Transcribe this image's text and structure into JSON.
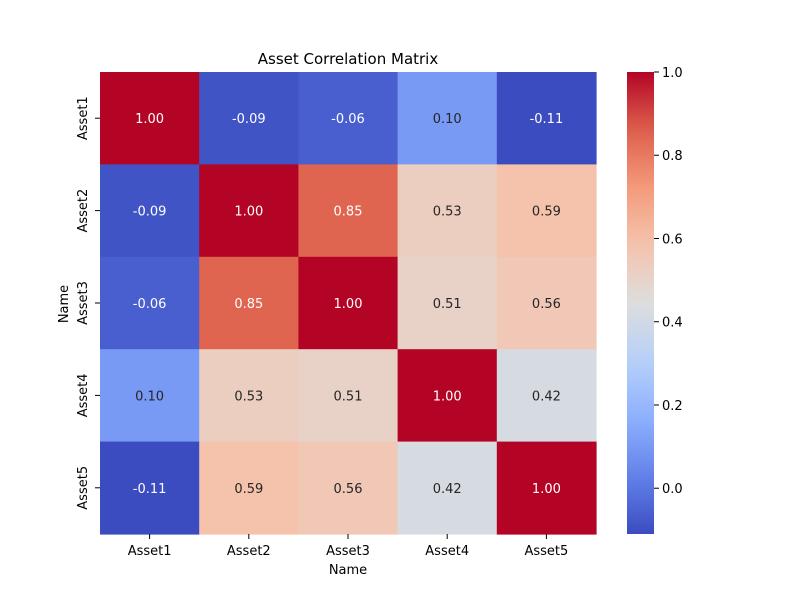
{
  "chart_data": {
    "type": "heatmap",
    "title": "Asset Correlation Matrix",
    "xlabel": "Name",
    "ylabel": "Name",
    "x_categories": [
      "Asset1",
      "Asset2",
      "Asset3",
      "Asset4",
      "Asset5"
    ],
    "y_categories": [
      "Asset1",
      "Asset2",
      "Asset3",
      "Asset4",
      "Asset5"
    ],
    "values": [
      [
        1.0,
        -0.09,
        -0.06,
        0.1,
        -0.11
      ],
      [
        -0.09,
        1.0,
        0.85,
        0.53,
        0.59
      ],
      [
        -0.06,
        0.85,
        1.0,
        0.51,
        0.56
      ],
      [
        0.1,
        0.53,
        0.51,
        1.0,
        0.42
      ],
      [
        -0.11,
        0.59,
        0.56,
        0.42,
        1.0
      ]
    ],
    "colormap": "coolwarm",
    "value_range": [
      -0.11,
      1.0
    ],
    "colorbar_ticks": [
      "0.0",
      "0.2",
      "0.4",
      "0.6",
      "0.8",
      "1.0"
    ],
    "annotate_format": "2 decimals"
  }
}
